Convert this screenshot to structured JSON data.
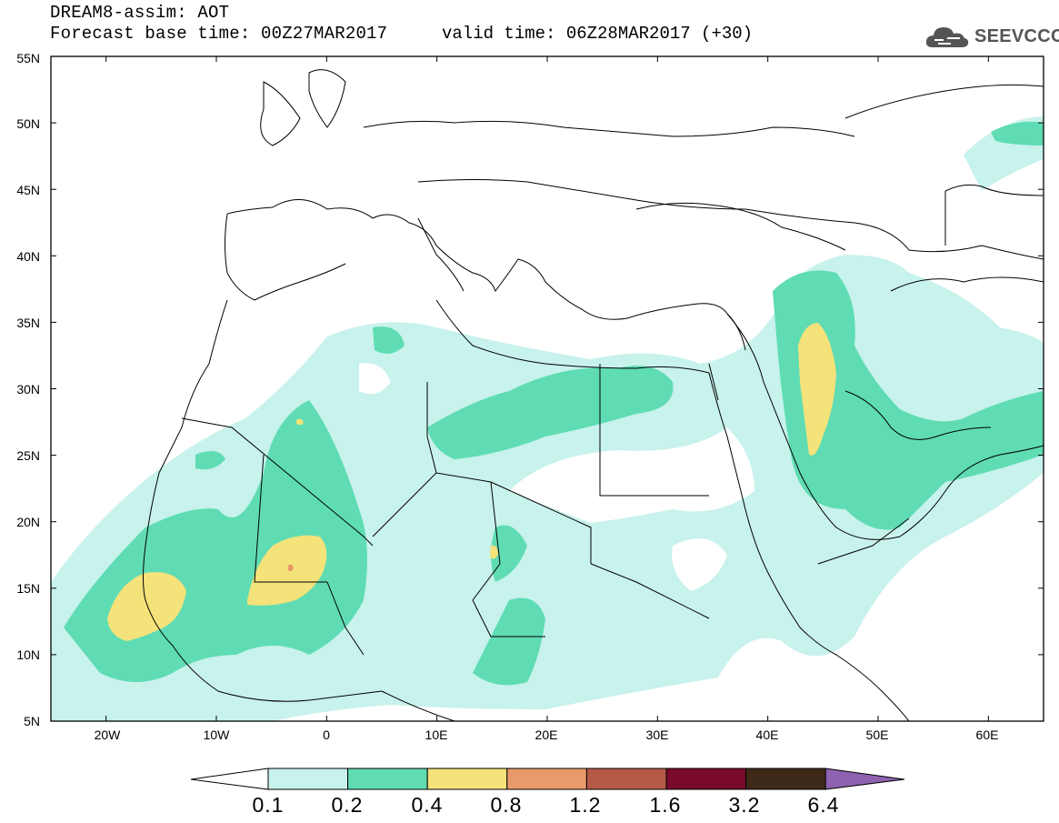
{
  "header": {
    "title": "DREAM8-assim: AOT",
    "base_time": "Forecast base time: 00Z27MAR2017",
    "valid_time": "valid time: 06Z28MAR2017 (+30)"
  },
  "logo": {
    "text": "SEEVCCC",
    "icon": "cloud-logo-icon"
  },
  "map": {
    "lat_labels": [
      "55N",
      "50N",
      "45N",
      "40N",
      "35N",
      "30N",
      "25N",
      "20N",
      "15N",
      "10N",
      "5N"
    ],
    "lon_labels": [
      "20W",
      "10W",
      "0",
      "10E",
      "20E",
      "30E",
      "40E",
      "50E",
      "60E"
    ],
    "extent": {
      "lon": [
        -25,
        65
      ],
      "lat": [
        5,
        55
      ]
    }
  },
  "colorbar": {
    "labels": [
      "0.1",
      "0.2",
      "0.4",
      "0.8",
      "1.2",
      "1.6",
      "3.2",
      "6.4"
    ],
    "colors": [
      "#c8f2ec",
      "#5fdcb3",
      "#f4e27a",
      "#e89a6a",
      "#b65a48",
      "#7a0a2a",
      "#3f2a1a",
      "#8e62b0"
    ],
    "under_color": "#ffffff"
  }
}
